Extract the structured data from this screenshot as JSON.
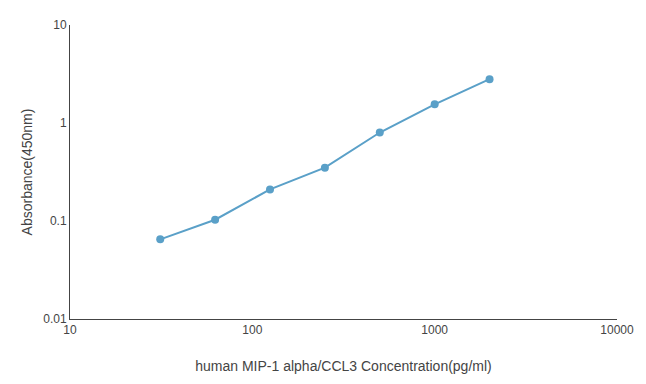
{
  "chart_data": {
    "type": "line",
    "x": [
      31.25,
      62.5,
      125,
      250,
      500,
      1000,
      2000
    ],
    "values": [
      0.065,
      0.103,
      0.21,
      0.35,
      0.8,
      1.55,
      2.8
    ],
    "color": "#5aa0c8",
    "marker": "circle",
    "xlabel": "human MIP-1 alpha/CCL3 Concentration(pg/ml)",
    "ylabel": "Absorbance(450nm)",
    "xlim": [
      10,
      10000
    ],
    "ylim": [
      0.01,
      10
    ],
    "xticks": [
      10,
      100,
      1000,
      10000
    ],
    "yticks": [
      0.01,
      0.1,
      1,
      10
    ],
    "log": true,
    "grid": false
  }
}
